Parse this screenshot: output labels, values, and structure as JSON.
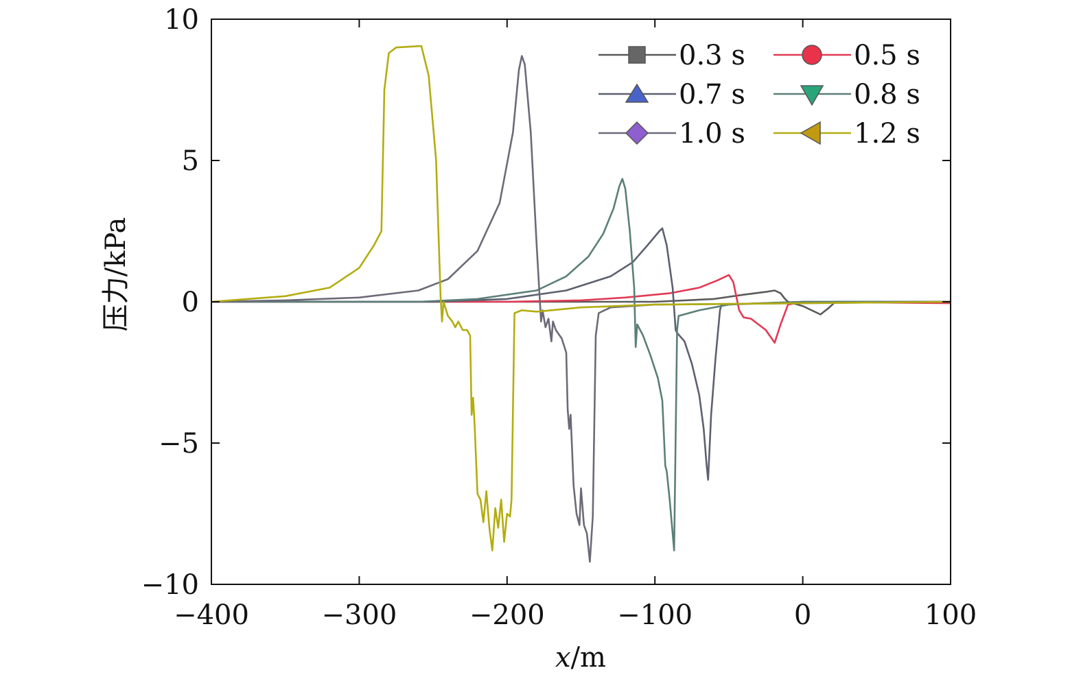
{
  "chart_data": {
    "type": "line",
    "title": "",
    "xlabel_var": "x",
    "xlabel_unit": "/m",
    "ylabel": "压力/kPa",
    "xlim": [
      -400,
      100
    ],
    "ylim": [
      -10,
      10
    ],
    "xticks": [
      -400,
      -300,
      -200,
      -100,
      0,
      100
    ],
    "xtick_labels": [
      "−400",
      "−300",
      "−200",
      "−100",
      "0",
      "100"
    ],
    "yticks": [
      -10,
      -5,
      0,
      5,
      10
    ],
    "ytick_labels": [
      "−10",
      "−5",
      "0",
      "5",
      "10"
    ],
    "grid": false,
    "legend_position": "top-right",
    "series": [
      {
        "name": "0.3 s",
        "marker": "square",
        "color": "#666666",
        "line_color": "#5a5a5a",
        "x": [
          -400,
          -100,
          -60,
          -40,
          -25,
          -19,
          -15,
          -12,
          -10,
          0,
          12,
          18,
          22,
          100
        ],
        "y": [
          0,
          0,
          0.1,
          0.25,
          0.35,
          0.4,
          0.3,
          0.1,
          0,
          -0.15,
          -0.45,
          -0.2,
          0,
          0
        ]
      },
      {
        "name": "0.5 s",
        "marker": "circle",
        "color": "#e8334a",
        "line_color": "#e23a55",
        "x": [
          -400,
          -200,
          -150,
          -120,
          -90,
          -70,
          -58,
          -50,
          -47,
          -43,
          -40,
          -35,
          -30,
          -25,
          -19,
          -15,
          -10,
          0,
          100
        ],
        "y": [
          0,
          0,
          0.05,
          0.15,
          0.3,
          0.5,
          0.75,
          0.95,
          0.7,
          -0.3,
          -0.55,
          -0.6,
          -0.8,
          -1.0,
          -1.45,
          -0.8,
          -0.1,
          0,
          -0.05
        ]
      },
      {
        "name": "0.7 s",
        "marker": "triangle-up",
        "color": "#4a63c8",
        "line_color": "#5c6070",
        "x": [
          -400,
          -250,
          -200,
          -160,
          -130,
          -115,
          -105,
          -97,
          -95,
          -92,
          -88,
          -86,
          -85,
          -80,
          -75,
          -70,
          -67,
          -65,
          -64,
          -62,
          -59,
          -56,
          -55,
          0,
          100
        ],
        "y": [
          0,
          0,
          0.1,
          0.4,
          0.9,
          1.4,
          2.0,
          2.5,
          2.6,
          2.0,
          0.5,
          -1.0,
          -1.1,
          -1.4,
          -2.2,
          -3.3,
          -4.5,
          -5.8,
          -6.3,
          -4.0,
          -2.0,
          -0.3,
          -0.1,
          0,
          0
        ]
      },
      {
        "name": "0.8 s",
        "marker": "triangle-down",
        "color": "#2aa57a",
        "line_color": "#5b7f78",
        "x": [
          -400,
          -260,
          -220,
          -180,
          -160,
          -145,
          -135,
          -128,
          -124,
          -122,
          -120,
          -117,
          -114,
          -113,
          -112,
          -108,
          -103,
          -98,
          -95,
          -93,
          -92,
          -90,
          -87,
          -85,
          -84,
          -70,
          -50,
          0,
          100
        ],
        "y": [
          0,
          0,
          0.1,
          0.4,
          0.9,
          1.6,
          2.4,
          3.3,
          4.1,
          4.35,
          4.0,
          2.5,
          0.5,
          -1.6,
          -0.8,
          -1.2,
          -1.9,
          -2.7,
          -3.5,
          -5.8,
          -6.0,
          -7.0,
          -8.8,
          -1.0,
          -0.5,
          -0.3,
          -0.1,
          0,
          0
        ]
      },
      {
        "name": "1.0 s",
        "marker": "diamond",
        "color": "#8f5fd0",
        "line_color": "#6c6a78",
        "x": [
          -400,
          -350,
          -300,
          -260,
          -240,
          -220,
          -205,
          -196,
          -192,
          -190,
          -188,
          -184,
          -180,
          -178,
          -177,
          -176,
          -174,
          -172,
          -170,
          -169,
          -167,
          -163,
          -160,
          -159,
          -158,
          -157,
          -155,
          -153,
          -151,
          -150,
          -148,
          -146,
          -144,
          -142,
          -140,
          -138,
          -130,
          -100,
          0,
          100
        ],
        "y": [
          0,
          0.05,
          0.15,
          0.4,
          0.8,
          1.8,
          3.5,
          6,
          8.2,
          8.7,
          8.4,
          6,
          2,
          0.2,
          -0.7,
          -0.3,
          -0.9,
          -0.6,
          -1.4,
          -0.7,
          -1.0,
          -1.3,
          -1.8,
          -3.8,
          -4.5,
          -4.0,
          -6.5,
          -7.5,
          -7.9,
          -6.6,
          -7.9,
          -8.2,
          -9.2,
          -7.6,
          -1.2,
          -0.4,
          -0.2,
          -0.1,
          -0.05,
          0
        ]
      },
      {
        "name": "1.2 s",
        "marker": "triangle-left",
        "color": "#c09a10",
        "line_color": "#b3ad10",
        "x": [
          -400,
          -350,
          -320,
          -300,
          -290,
          -285,
          -283,
          -280,
          -275,
          -258,
          -253,
          -248,
          -245,
          -244,
          -243,
          -240,
          -237,
          -235,
          -233,
          -230,
          -227,
          -225,
          -224,
          -223,
          -222,
          -220,
          -218,
          -216,
          -214,
          -212,
          -210,
          -208,
          -206,
          -204,
          -202,
          -200,
          -198,
          -197,
          -195,
          -190,
          -180,
          -150,
          -100,
          0,
          100
        ],
        "y": [
          0,
          0.2,
          0.5,
          1.2,
          2.0,
          2.5,
          7.5,
          8.8,
          9.0,
          9.05,
          8.0,
          5,
          0.2,
          -0.7,
          0,
          -0.5,
          -0.7,
          -0.9,
          -0.7,
          -1.0,
          -1.0,
          -1.2,
          -4.0,
          -3.4,
          -4.3,
          -6.8,
          -7.0,
          -7.8,
          -6.7,
          -8.0,
          -8.8,
          -7.3,
          -8.0,
          -7.0,
          -8.5,
          -7.5,
          -7.6,
          -7.0,
          -0.4,
          -0.3,
          -0.35,
          -0.2,
          -0.1,
          -0.05,
          0
        ]
      }
    ]
  }
}
